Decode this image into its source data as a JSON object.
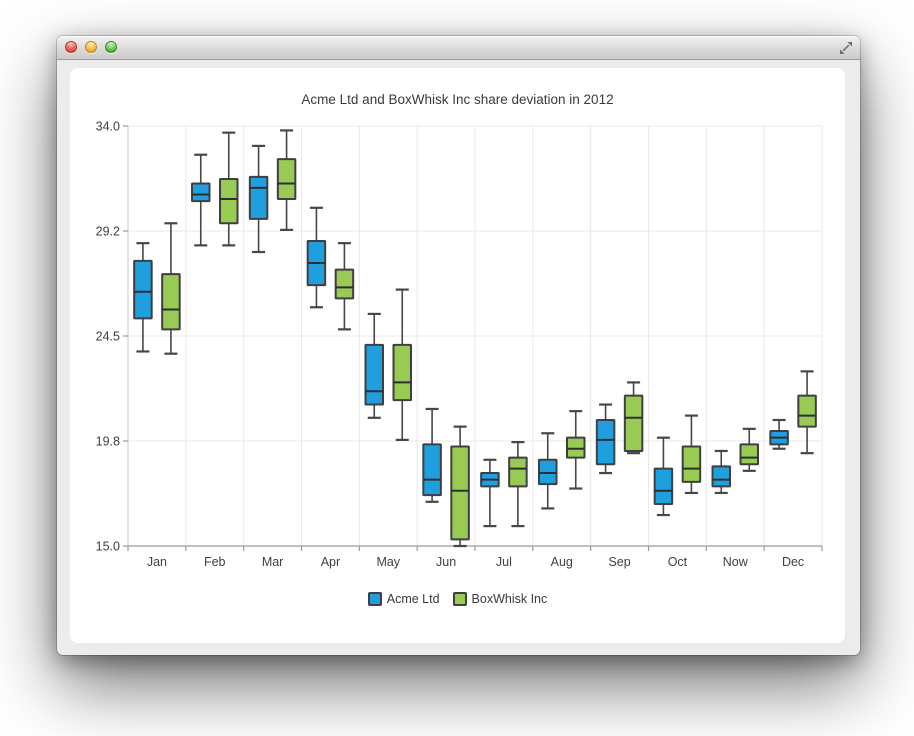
{
  "window": {
    "controls": [
      "close",
      "minimize",
      "zoom"
    ],
    "background": "#ececec",
    "panel_background": "#ffffff"
  },
  "chart_data": {
    "type": "boxplot",
    "title": "Acme Ltd and BoxWhisk Inc share deviation in 2012",
    "categories": [
      "Jan",
      "Feb",
      "Mar",
      "Apr",
      "May",
      "Jun",
      "Jul",
      "Aug",
      "Sep",
      "Oct",
      "Now",
      "Dec"
    ],
    "y_ticks": {
      "labels": [
        "34.0",
        "29.2",
        "24.5",
        "19.8",
        "15.0"
      ],
      "values": [
        34.0,
        29.25,
        24.5,
        19.75,
        15.0
      ]
    },
    "ylim": [
      15.0,
      34.0
    ],
    "grid": true,
    "legend_position": "bottom",
    "box_value_order": [
      "lower_extreme",
      "lower_quartile",
      "median",
      "upper_quartile",
      "upper_extreme"
    ],
    "series": [
      {
        "name": "Acme Ltd",
        "color": "#209fdf",
        "values": [
          [
            23.8,
            25.3,
            26.5,
            27.9,
            28.7
          ],
          [
            28.6,
            30.6,
            30.9,
            31.4,
            32.7
          ],
          [
            28.3,
            29.8,
            31.2,
            31.7,
            33.1
          ],
          [
            25.8,
            26.8,
            27.8,
            28.8,
            30.3
          ],
          [
            20.8,
            21.4,
            22.0,
            24.1,
            25.5
          ],
          [
            17.0,
            17.3,
            18.0,
            19.6,
            21.2
          ],
          [
            15.9,
            17.7,
            18.0,
            18.3,
            18.9
          ],
          [
            16.7,
            17.8,
            18.3,
            18.9,
            20.1
          ],
          [
            18.3,
            18.7,
            19.8,
            20.7,
            21.4
          ],
          [
            16.4,
            16.9,
            17.5,
            18.5,
            19.9
          ],
          [
            17.4,
            17.7,
            18.0,
            18.6,
            19.3
          ],
          [
            19.4,
            19.6,
            19.9,
            20.2,
            20.7
          ]
        ]
      },
      {
        "name": "BoxWhisk Inc",
        "color": "#99ca53",
        "values": [
          [
            23.7,
            24.8,
            25.7,
            27.3,
            29.6
          ],
          [
            28.6,
            29.6,
            30.7,
            31.6,
            33.7
          ],
          [
            29.3,
            30.7,
            31.4,
            32.5,
            33.8
          ],
          [
            24.8,
            26.2,
            26.7,
            27.5,
            28.7
          ],
          [
            19.8,
            21.6,
            22.4,
            24.1,
            26.6
          ],
          [
            15.0,
            15.3,
            17.5,
            19.5,
            20.4
          ],
          [
            15.9,
            17.7,
            18.5,
            19.0,
            19.7
          ],
          [
            17.6,
            19.0,
            19.4,
            19.9,
            21.1
          ],
          [
            19.2,
            19.3,
            20.8,
            21.8,
            22.4
          ],
          [
            17.4,
            17.9,
            18.5,
            19.5,
            20.9
          ],
          [
            18.4,
            18.7,
            19.0,
            19.6,
            20.3
          ],
          [
            19.2,
            20.4,
            20.9,
            21.8,
            22.9
          ]
        ]
      }
    ],
    "style": {
      "box_border": "#3f3f43",
      "median_color": "#2f2f33",
      "whisker_color": "#47474b",
      "grid_color": "#e8e8e8",
      "axis_color": "#9a9a9a",
      "label_color": "#404044"
    }
  }
}
